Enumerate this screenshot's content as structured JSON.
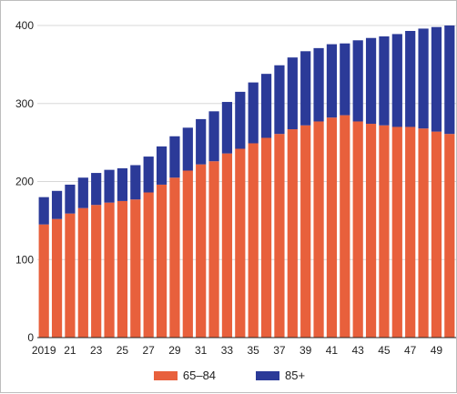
{
  "chart_data": {
    "type": "bar",
    "stacked": true,
    "title": "",
    "xlabel": "",
    "ylabel": "",
    "ylim": [
      0,
      400
    ],
    "yticks": [
      0,
      100,
      200,
      300,
      400
    ],
    "grid": "horizontal",
    "legend_position": "bottom-center",
    "categories": [
      "2019",
      "2020",
      "2021",
      "2022",
      "2023",
      "2024",
      "2025",
      "2026",
      "2027",
      "2028",
      "2029",
      "2030",
      "2031",
      "2032",
      "2033",
      "2034",
      "2035",
      "2036",
      "2037",
      "2038",
      "2039",
      "2040",
      "2041",
      "2042",
      "2043",
      "2044",
      "2045",
      "2046",
      "2047",
      "2048",
      "2049",
      "2050"
    ],
    "x_tick_labels": [
      "2019",
      "21",
      "23",
      "25",
      "27",
      "29",
      "31",
      "33",
      "35",
      "37",
      "39",
      "41",
      "43",
      "45",
      "47",
      "49"
    ],
    "series": [
      {
        "name": "65–84",
        "color": "#e8603c",
        "values": [
          145,
          152,
          159,
          166,
          170,
          173,
          175,
          177,
          186,
          196,
          205,
          214,
          222,
          226,
          236,
          242,
          249,
          256,
          261,
          267,
          272,
          277,
          282,
          285,
          277,
          274,
          272,
          270,
          270,
          268,
          264,
          261
        ]
      },
      {
        "name": "85+",
        "color": "#2b3a98",
        "values": [
          35,
          36,
          37,
          39,
          41,
          42,
          42,
          44,
          46,
          49,
          53,
          55,
          58,
          64,
          66,
          73,
          78,
          82,
          88,
          92,
          95,
          94,
          94,
          92,
          104,
          110,
          114,
          119,
          123,
          128,
          134,
          139
        ]
      }
    ]
  }
}
